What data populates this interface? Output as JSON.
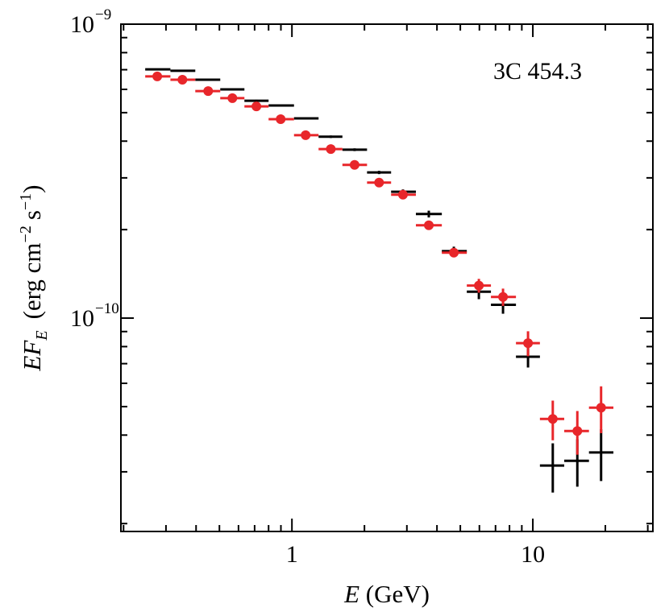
{
  "chart_data": {
    "type": "errorbar",
    "annotation": "3C 454.3",
    "xlabel": {
      "var": "E",
      "unit": "(GeV)"
    },
    "ylabel": {
      "var": "EF",
      "sub": "E",
      "unit": "(erg cm",
      "exp1": "−2",
      "unit2": "s",
      "exp2": "−1",
      "close": ")"
    },
    "log_x": true,
    "log_y": true,
    "xlim": [
      0.195,
      31.5
    ],
    "ylim": [
      1.88e-11,
      1e-09
    ],
    "xticks": [
      1,
      10
    ],
    "xminorticks": [
      0.2,
      0.3,
      0.4,
      0.5,
      0.6,
      0.7,
      0.8,
      0.9,
      2,
      3,
      4,
      5,
      6,
      7,
      8,
      9,
      20,
      30
    ],
    "yticks": [
      {
        "value": 1e-10,
        "label": "10",
        "exponent": "−10"
      },
      {
        "value": 1e-09,
        "label": "10",
        "exponent": "−9"
      }
    ],
    "yminorticks": [
      2e-11,
      3e-11,
      4e-11,
      5e-11,
      6e-11,
      7e-11,
      8e-11,
      9e-11,
      2e-10,
      3e-10,
      4e-10,
      5e-10,
      6e-10,
      7e-10,
      8e-10,
      9e-10
    ],
    "x": [
      0.276,
      0.351,
      0.449,
      0.566,
      0.712,
      0.898,
      1.14,
      1.45,
      1.82,
      2.3,
      2.89,
      3.7,
      4.7,
      5.97,
      7.52,
      9.55,
      12.1,
      15.3,
      19.2
    ],
    "bin_edges": [
      0.246,
      0.313,
      0.397,
      0.504,
      0.635,
      0.8,
      1.02,
      1.29,
      1.62,
      2.05,
      2.58,
      3.27,
      4.19,
      5.32,
      6.7,
      8.51,
      10.7,
      13.5,
      17.1,
      21.6
    ],
    "series": [
      {
        "color": "#000000",
        "marker": "none",
        "values": [
          7.02e-10,
          6.94e-10,
          6.47e-10,
          6e-10,
          5.49e-10,
          5.29e-10,
          4.78e-10,
          4.14e-10,
          3.74e-10,
          3.13e-10,
          2.69e-10,
          2.26e-10,
          1.69e-10,
          1.23e-10,
          1.11e-10,
          7.39e-11,
          3.15e-11,
          3.27e-11,
          3.49e-11
        ],
        "yerr": [
          4e-12,
          4e-12,
          4e-12,
          4e-12,
          4e-12,
          4e-12,
          4e-12,
          4e-12,
          4e-12,
          4e-12,
          5e-12,
          6e-12,
          6e-12,
          7e-12,
          7.5e-12,
          6e-12,
          6e-12,
          6e-12,
          7e-12
        ]
      },
      {
        "color": "#e8262a",
        "marker": "circle",
        "values": [
          6.64e-10,
          6.47e-10,
          5.92e-10,
          5.6e-10,
          5.25e-10,
          4.75e-10,
          4.19e-10,
          3.76e-10,
          3.32e-10,
          2.89e-10,
          2.63e-10,
          2.07e-10,
          1.67e-10,
          1.29e-10,
          1.18e-10,
          8.22e-11,
          4.54e-11,
          4.13e-11,
          4.96e-11
        ],
        "yerr": [
          4e-12,
          4e-12,
          4e-12,
          4e-12,
          4e-12,
          4e-12,
          4e-12,
          4e-12,
          4e-12,
          4e-12,
          5e-12,
          5e-12,
          6e-12,
          7e-12,
          8e-12,
          8e-12,
          7e-12,
          7e-12,
          9e-12
        ]
      }
    ]
  }
}
